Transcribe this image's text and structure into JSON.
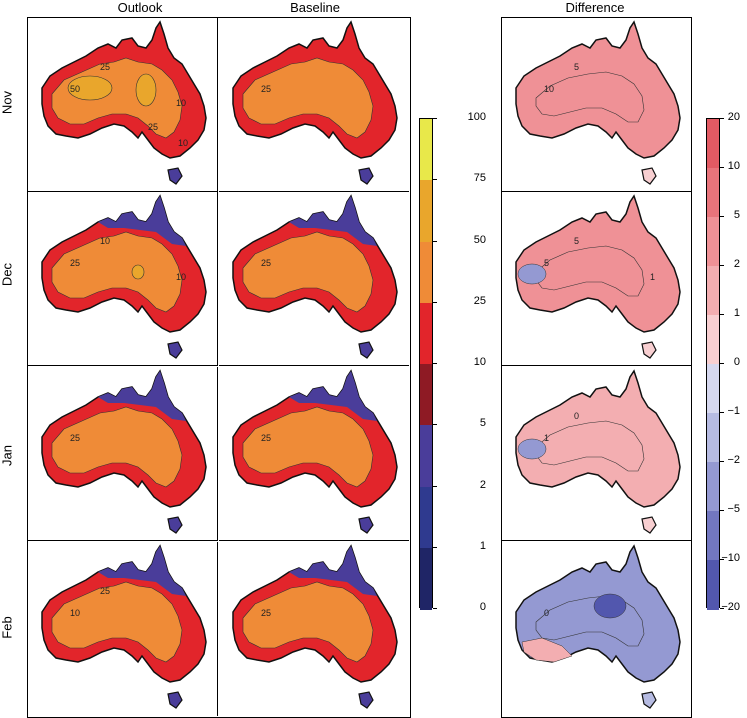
{
  "columns": [
    "Outlook",
    "Baseline",
    "Difference"
  ],
  "rows": [
    "Nov",
    "Dec",
    "Jan",
    "Feb"
  ],
  "colorbar_left": {
    "ticks": [
      "100",
      "75",
      "50",
      "25",
      "10",
      "5",
      "2",
      "1",
      "0"
    ],
    "colors": [
      "#e8e84a",
      "#e9a62c",
      "#ef8b37",
      "#e2252b",
      "#8e1a24",
      "#4a3d9a",
      "#2f3a8f",
      "#1f2566"
    ]
  },
  "colorbar_right": {
    "ticks": [
      "20",
      "10",
      "5",
      "2",
      "1",
      "0",
      "−1",
      "−2",
      "−5",
      "−10",
      "−20"
    ],
    "colors": [
      "#e25a63",
      "#e8747b",
      "#ef9196",
      "#f3aeb1",
      "#f8cfd1",
      "#d6d8ef",
      "#b6bbe2",
      "#9499d2",
      "#7277c0",
      "#5257ae"
    ]
  },
  "map_labels": {
    "nov_outlook": [
      "50",
      "25",
      "10",
      "25",
      "10"
    ],
    "nov_baseline": [
      "25"
    ],
    "nov_difference": [
      "10",
      "5"
    ],
    "dec_outlook": [
      "25",
      "10",
      "10"
    ],
    "dec_baseline": [
      "25"
    ],
    "dec_difference": [
      "5",
      "5",
      "1"
    ],
    "jan_outlook": [
      "25"
    ],
    "jan_baseline": [
      "25"
    ],
    "jan_difference": [
      "1",
      "0"
    ],
    "feb_outlook": [
      "10",
      "25"
    ],
    "feb_baseline": [
      "25"
    ],
    "feb_difference": [
      "0"
    ]
  },
  "map_fills": {
    "outlook": {
      "interior": "#ef8b37",
      "coast": "#e2252b",
      "tropics": "#4a3d9a",
      "hot": "#e9a62c"
    },
    "baseline": {
      "interior": "#ef8b37",
      "coast": "#e2252b",
      "tropics": "#4a3d9a"
    },
    "difference": {
      "nov": "#ef9196",
      "dec": "#ef9196",
      "jan": "#f3aeb1",
      "feb": "#9499d2"
    }
  }
}
